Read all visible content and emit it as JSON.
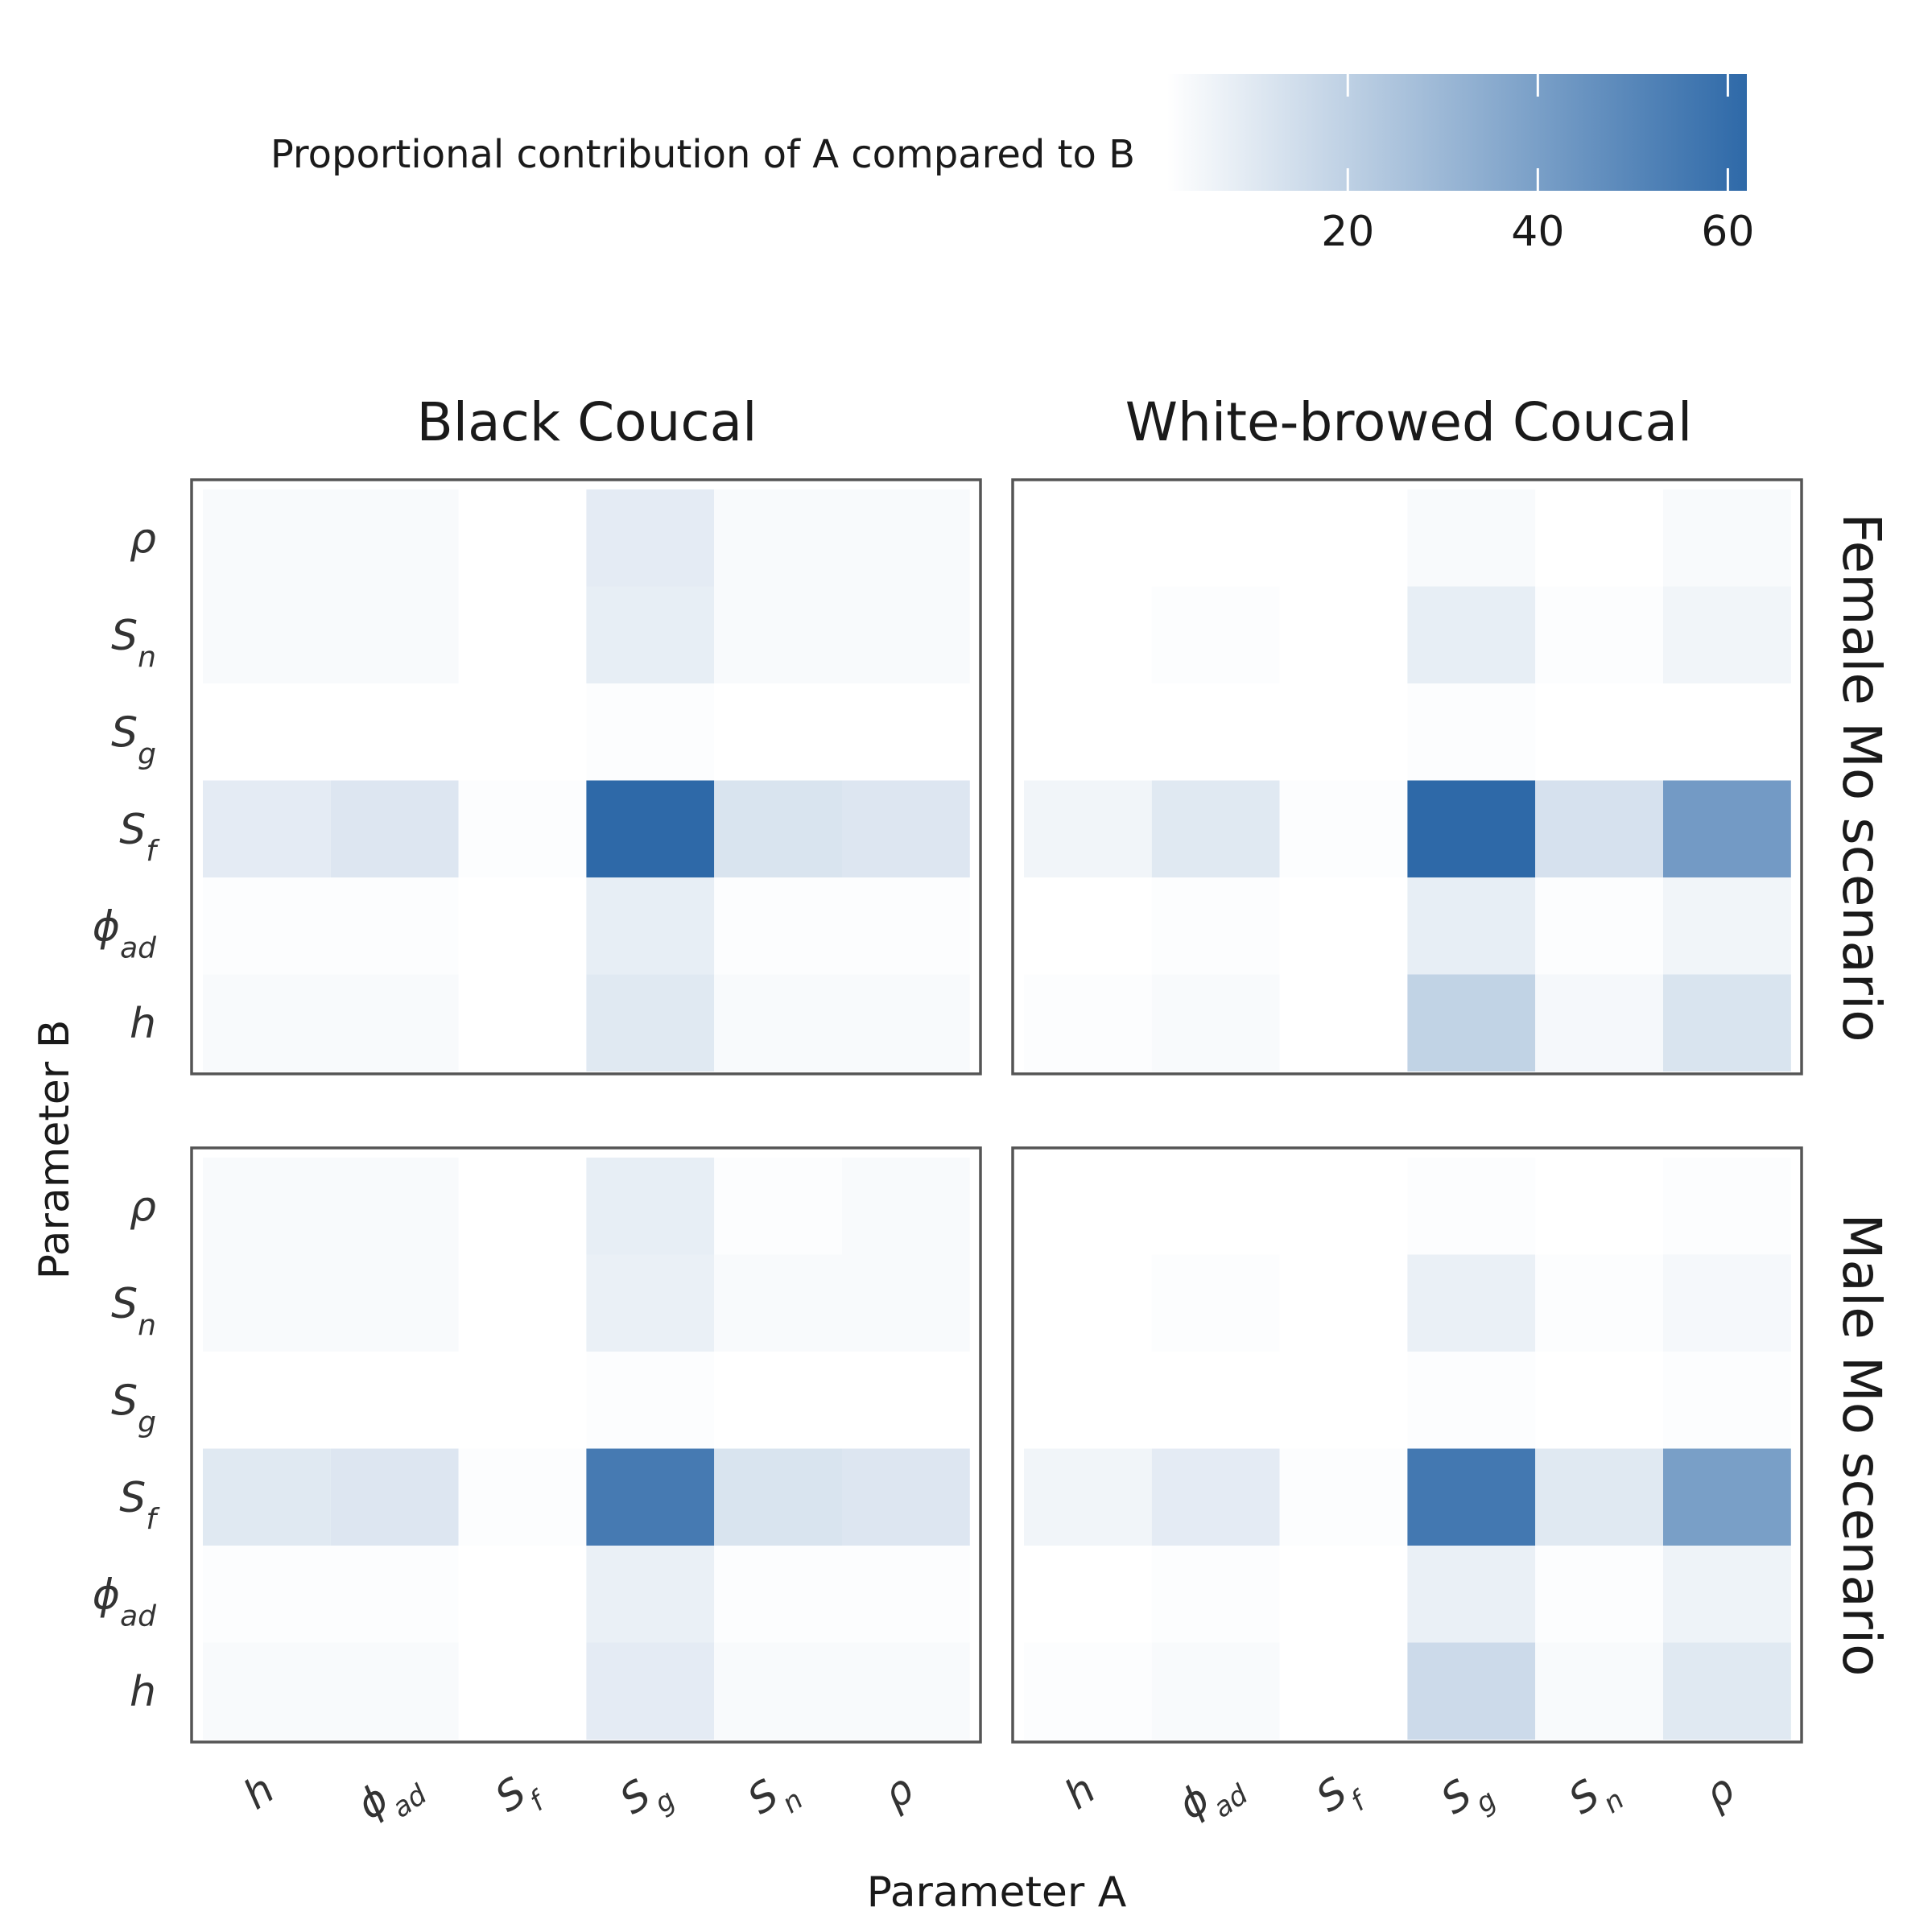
{
  "chart_data": {
    "type": "heatmap",
    "xlabel": "Parameter A",
    "ylabel": "Parameter B",
    "colorbar": {
      "label": "Proportional contribution of A compared to B",
      "range": [
        1,
        62
      ],
      "ticks": [
        20,
        40,
        60
      ],
      "color_low": "#ffffff",
      "color_high": "#2e69a8"
    },
    "x_categories": [
      {
        "base": "h",
        "sub": ""
      },
      {
        "base": "ϕ",
        "sub": "ad"
      },
      {
        "base": "S",
        "sub": "f"
      },
      {
        "base": "S",
        "sub": "g"
      },
      {
        "base": "S",
        "sub": "n"
      },
      {
        "base": "ρ",
        "sub": ""
      }
    ],
    "y_categories": [
      {
        "base": "ρ",
        "sub": ""
      },
      {
        "base": "S",
        "sub": "n"
      },
      {
        "base": "S",
        "sub": "g"
      },
      {
        "base": "S",
        "sub": "f"
      },
      {
        "base": "ϕ",
        "sub": "ad"
      },
      {
        "base": "h",
        "sub": ""
      }
    ],
    "col_titles": [
      "Black Coucal",
      "White-browed Coucal"
    ],
    "row_titles": [
      "Female Mo scenario",
      "Male Mo scenario"
    ],
    "panels": [
      {
        "species": "Black Coucal",
        "scenario": "Female Mo scenario",
        "values": [
          [
            3,
            3,
            null,
            9,
            3,
            3
          ],
          [
            3,
            3,
            null,
            8,
            3,
            3
          ],
          [
            1,
            1,
            null,
            2,
            1,
            1
          ],
          [
            9,
            11,
            2,
            62,
            12,
            11
          ],
          [
            2,
            2,
            null,
            8,
            2,
            2
          ],
          [
            3,
            3,
            null,
            10,
            3,
            3
          ]
        ]
      },
      {
        "species": "White-browed Coucal",
        "scenario": "Female Mo scenario",
        "values": [
          [
            null,
            null,
            null,
            3,
            null,
            3
          ],
          [
            null,
            2,
            null,
            8,
            2,
            5
          ],
          [
            null,
            null,
            null,
            2,
            null,
            null
          ],
          [
            5,
            10,
            2,
            62,
            13,
            42
          ],
          [
            null,
            2,
            null,
            8,
            2,
            5
          ],
          [
            2,
            3,
            null,
            19,
            4,
            12
          ]
        ]
      },
      {
        "species": "Black Coucal",
        "scenario": "Male Mo scenario",
        "values": [
          [
            3,
            3,
            null,
            8,
            2,
            3
          ],
          [
            3,
            3,
            null,
            7,
            3,
            3
          ],
          [
            1,
            1,
            null,
            2,
            1,
            1
          ],
          [
            10,
            11,
            2,
            55,
            12,
            11
          ],
          [
            2,
            2,
            null,
            7,
            2,
            2
          ],
          [
            3,
            3,
            null,
            9,
            3,
            3
          ]
        ]
      },
      {
        "species": "White-browed Coucal",
        "scenario": "Male Mo scenario",
        "values": [
          [
            null,
            null,
            null,
            2,
            null,
            2
          ],
          [
            null,
            2,
            null,
            7,
            2,
            4
          ],
          [
            null,
            null,
            null,
            2,
            null,
            2
          ],
          [
            5,
            9,
            2,
            56,
            10,
            40
          ],
          [
            null,
            2,
            null,
            7,
            2,
            6
          ],
          [
            2,
            3,
            null,
            16,
            3,
            10
          ]
        ]
      }
    ]
  }
}
